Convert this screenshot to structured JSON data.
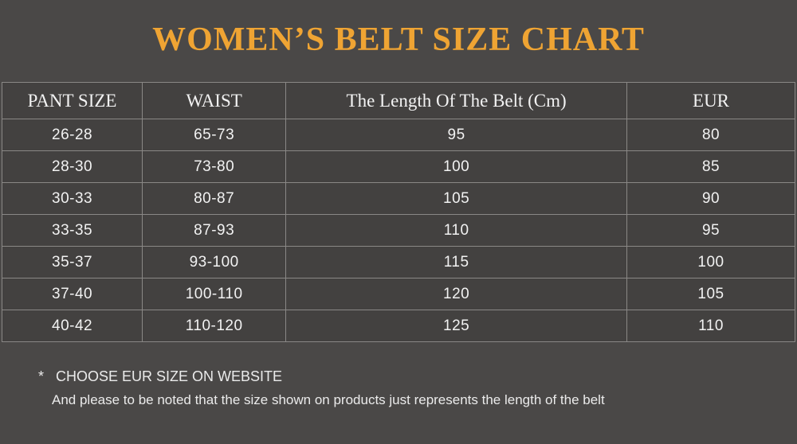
{
  "page": {
    "title": "WOMEN’S BELT SIZE CHART",
    "colors": {
      "page_bg": "#4a4847",
      "cell_bg": "#434140",
      "border": "#8a8886",
      "title": "#efa433",
      "text": "#f2f2f2"
    }
  },
  "table": {
    "headers": [
      "PANT SIZE",
      "WAIST",
      "The Length Of The Belt (Cm)",
      "EUR"
    ],
    "rows": [
      [
        "26-28",
        "65-73",
        "95",
        "80"
      ],
      [
        "28-30",
        "73-80",
        "100",
        "85"
      ],
      [
        "30-33",
        "80-87",
        "105",
        "90"
      ],
      [
        "33-35",
        "87-93",
        "110",
        "95"
      ],
      [
        "35-37",
        "93-100",
        "115",
        "100"
      ],
      [
        "37-40",
        "100-110",
        "120",
        "105"
      ],
      [
        "40-42",
        "110-120",
        "125",
        "110"
      ]
    ]
  },
  "notes": {
    "asterisk": "*",
    "line1": "CHOOSE EUR SIZE ON WEBSITE",
    "line2": "And please to be noted that the size shown on products just represents the length of the belt"
  },
  "chart_data": {
    "type": "table",
    "title": "WOMEN’S BELT SIZE CHART",
    "columns": [
      "PANT SIZE",
      "WAIST",
      "The Length Of The Belt (Cm)",
      "EUR"
    ],
    "rows": [
      [
        "26-28",
        "65-73",
        95,
        80
      ],
      [
        "28-30",
        "73-80",
        100,
        85
      ],
      [
        "30-33",
        "80-87",
        105,
        90
      ],
      [
        "33-35",
        "87-93",
        110,
        95
      ],
      [
        "35-37",
        "93-100",
        115,
        100
      ],
      [
        "37-40",
        "100-110",
        120,
        105
      ],
      [
        "40-42",
        "110-120",
        125,
        110
      ]
    ],
    "footnotes": [
      "* CHOOSE EUR SIZE ON WEBSITE",
      "And please to be noted that the size shown on products just represents the length of the belt"
    ]
  }
}
